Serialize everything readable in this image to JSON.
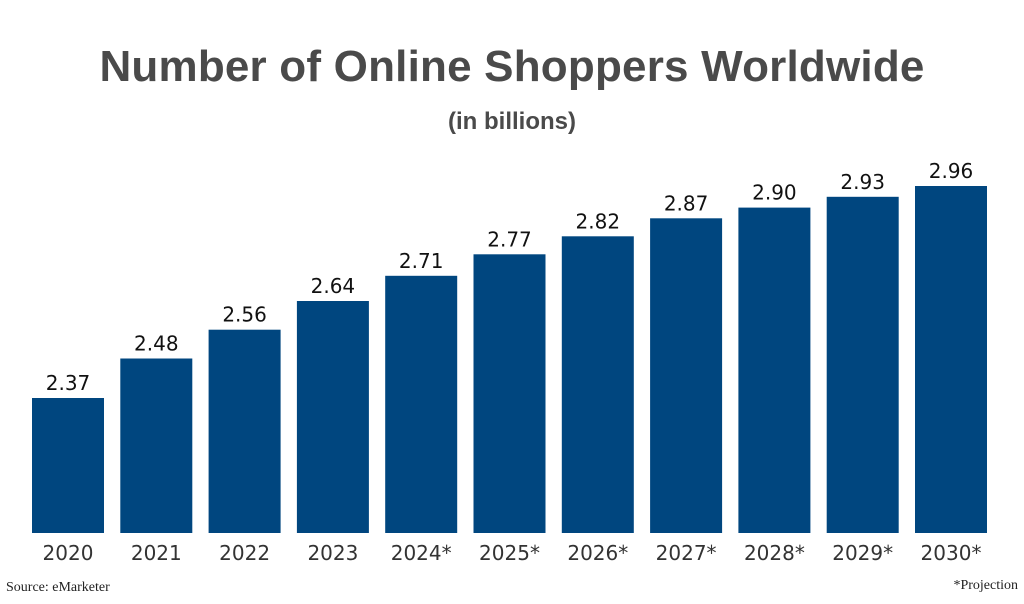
{
  "chart_data": {
    "type": "bar",
    "title": "Number of Online Shoppers Worldwide",
    "subtitle": "(in billions)",
    "categories": [
      "2020",
      "2021",
      "2022",
      "2023",
      "2024*",
      "2025*",
      "2026*",
      "2027*",
      "2028*",
      "2029*",
      "2030*"
    ],
    "values": [
      2.37,
      2.48,
      2.56,
      2.64,
      2.71,
      2.77,
      2.82,
      2.87,
      2.9,
      2.93,
      2.96
    ],
    "value_labels": [
      "2.37",
      "2.48",
      "2.56",
      "2.64",
      "2.71",
      "2.77",
      "2.82",
      "2.87",
      "2.90",
      "2.93",
      "2.96"
    ],
    "xlabel": "",
    "ylabel": "",
    "grid": false,
    "bar_color": "#00467f"
  },
  "footer": {
    "source": "Source: eMarketer",
    "note": "*Projection"
  }
}
